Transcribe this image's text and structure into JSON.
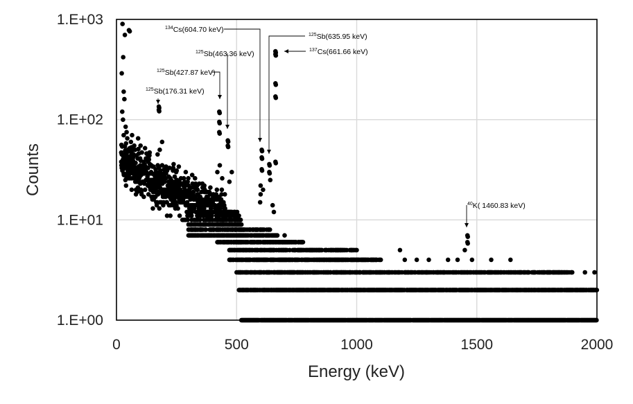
{
  "chart_data": {
    "type": "scatter",
    "title": "",
    "xlabel": "Energy (keV)",
    "ylabel": "Counts",
    "xlim": [
      0,
      2000
    ],
    "ylim": [
      1,
      1000
    ],
    "yscale": "log",
    "grid": true,
    "legend": "none",
    "x_ticks": [
      0,
      500,
      1000,
      1500,
      2000
    ],
    "x_tick_labels": [
      "0",
      "500",
      "1000",
      "1500",
      "2000"
    ],
    "y_ticks": [
      1,
      10,
      100,
      1000
    ],
    "y_tick_labels": [
      "1.E+00",
      "1.E+01",
      "1.E+02",
      "1.E+03"
    ],
    "marker_color": "#000000",
    "grid_color": "#d9d9d9",
    "annotations": [
      {
        "isotope": "125",
        "element": "Sb",
        "label": "(176.31 keV)",
        "energy": 176.31,
        "counts": 135
      },
      {
        "isotope": "125",
        "element": "Sb",
        "label": "(427.87 keV)",
        "energy": 427.87,
        "counts": 120
      },
      {
        "isotope": "125",
        "element": "Sb",
        "label": "(463.36 keV)",
        "energy": 463.36,
        "counts": 62
      },
      {
        "isotope": "134",
        "element": "Cs",
        "label": "(604.70 keV)",
        "energy": 604.7,
        "counts": 50
      },
      {
        "isotope": "125",
        "element": "Sb",
        "label": "(635.95 keV)",
        "energy": 635.95,
        "counts": 36
      },
      {
        "isotope": "137",
        "element": "Cs",
        "label": "(661.66 keV)",
        "energy": 661.66,
        "counts": 460
      },
      {
        "isotope": "40",
        "element": "K",
        "label": "( 1460.83 keV)",
        "energy": 1460.83,
        "counts": 7
      }
    ],
    "peaks": [
      {
        "x": 176.31,
        "y": [
          135,
          125
        ]
      },
      {
        "x": 427.87,
        "y": [
          120,
          95,
          75
        ]
      },
      {
        "x": 463.36,
        "y": [
          62,
          55
        ]
      },
      {
        "x": 604.7,
        "y": [
          50,
          42,
          32
        ]
      },
      {
        "x": 635.95,
        "y": [
          36,
          30
        ]
      },
      {
        "x": 661.66,
        "y": [
          480,
          450,
          230,
          170,
          38
        ]
      },
      {
        "x": 1460.83,
        "y": [
          7,
          6
        ]
      }
    ],
    "low_energy_points": [
      {
        "x": 25,
        "y": 900
      },
      {
        "x": 28,
        "y": 420
      },
      {
        "x": 22,
        "y": 290
      },
      {
        "x": 30,
        "y": 190
      },
      {
        "x": 33,
        "y": 160
      },
      {
        "x": 24,
        "y": 120
      },
      {
        "x": 27,
        "y": 100
      },
      {
        "x": 52,
        "y": 780
      },
      {
        "x": 55,
        "y": 760
      },
      {
        "x": 35,
        "y": 700
      },
      {
        "x": 38,
        "y": 85
      },
      {
        "x": 42,
        "y": 75
      },
      {
        "x": 30,
        "y": 70
      },
      {
        "x": 45,
        "y": 65
      },
      {
        "x": 60,
        "y": 60
      },
      {
        "x": 65,
        "y": 70
      },
      {
        "x": 90,
        "y": 65
      },
      {
        "x": 100,
        "y": 55
      },
      {
        "x": 190,
        "y": 60
      },
      {
        "x": 180,
        "y": 50
      }
    ]
  }
}
